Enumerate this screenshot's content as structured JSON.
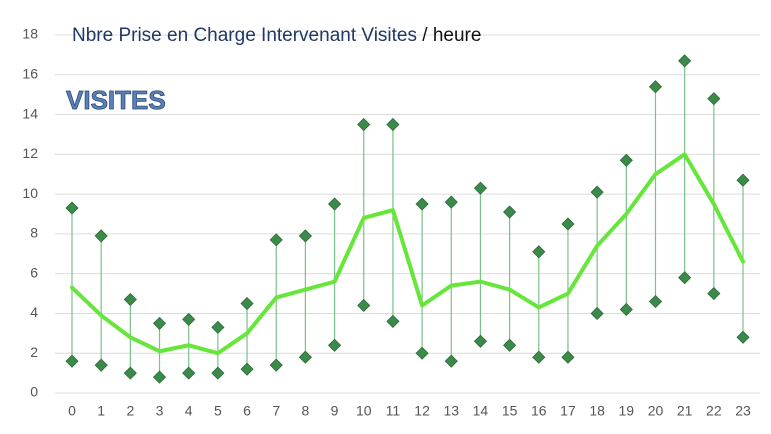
{
  "chart_data": {
    "type": "line",
    "title": "Nbre Prise en Charge Intervenant Visites",
    "title_suffix": "/ heure",
    "annotation": "VISITES",
    "categories": [
      "0",
      "1",
      "2",
      "3",
      "4",
      "5",
      "6",
      "7",
      "8",
      "9",
      "10",
      "11",
      "12",
      "13",
      "14",
      "15",
      "16",
      "17",
      "18",
      "19",
      "20",
      "21",
      "22",
      "23"
    ],
    "series": [
      {
        "color": "#3c8a4a",
        "marker": "diamond",
        "values": [
          9.3,
          7.9,
          4.7,
          3.5,
          3.7,
          3.3,
          4.5,
          7.7,
          7.9,
          9.5,
          13.5,
          13.5,
          9.5,
          9.6,
          10.3,
          9.1,
          7.1,
          8.5,
          10.1,
          11.7,
          15.4,
          16.7,
          14.8,
          10.7
        ]
      },
      {
        "color": "#3c8a4a",
        "marker": "diamond",
        "values": [
          1.6,
          1.4,
          1.0,
          0.8,
          1.0,
          1.0,
          1.2,
          1.4,
          1.8,
          2.4,
          4.4,
          3.6,
          2.0,
          1.6,
          2.6,
          2.4,
          1.8,
          1.8,
          4.0,
          4.2,
          4.6,
          5.8,
          5.0,
          2.8
        ]
      },
      {
        "color": "#66e63a",
        "marker": "none",
        "values": [
          5.3,
          3.9,
          2.8,
          2.1,
          2.4,
          2.0,
          3.0,
          4.8,
          5.2,
          5.6,
          8.8,
          9.2,
          4.4,
          5.4,
          5.6,
          5.2,
          4.3,
          5.0,
          7.4,
          9.0,
          11.0,
          12.0,
          9.5,
          6.6
        ]
      }
    ],
    "range_color": "#7cc08a",
    "ylim": [
      0,
      18
    ],
    "yticks": [
      0,
      2,
      4,
      6,
      8,
      10,
      12,
      14,
      16,
      18
    ],
    "grid": true
  }
}
